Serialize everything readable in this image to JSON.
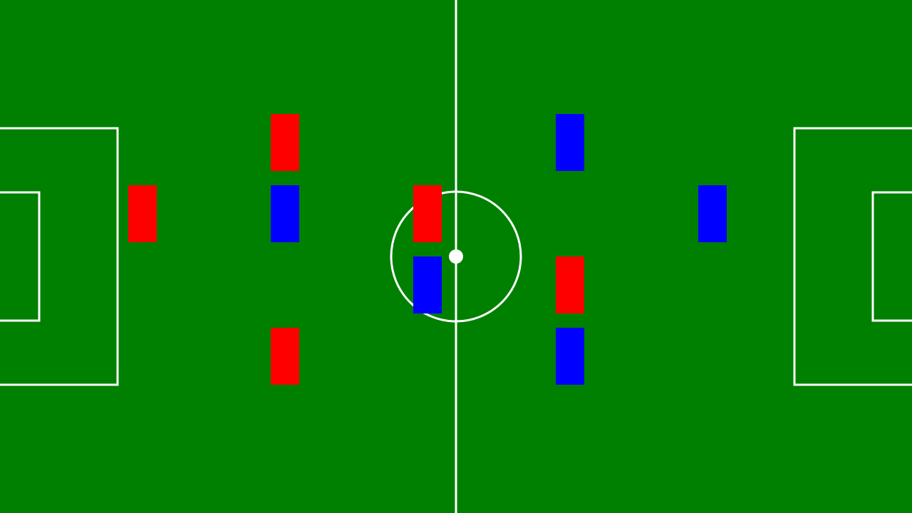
{
  "pitch_color": "#008000",
  "line_color": "#ffffff",
  "ball_color": "#ffffff",
  "teams": {
    "red": {
      "color": "#ff0000"
    },
    "blue": {
      "color": "#0000ff"
    }
  }
}
